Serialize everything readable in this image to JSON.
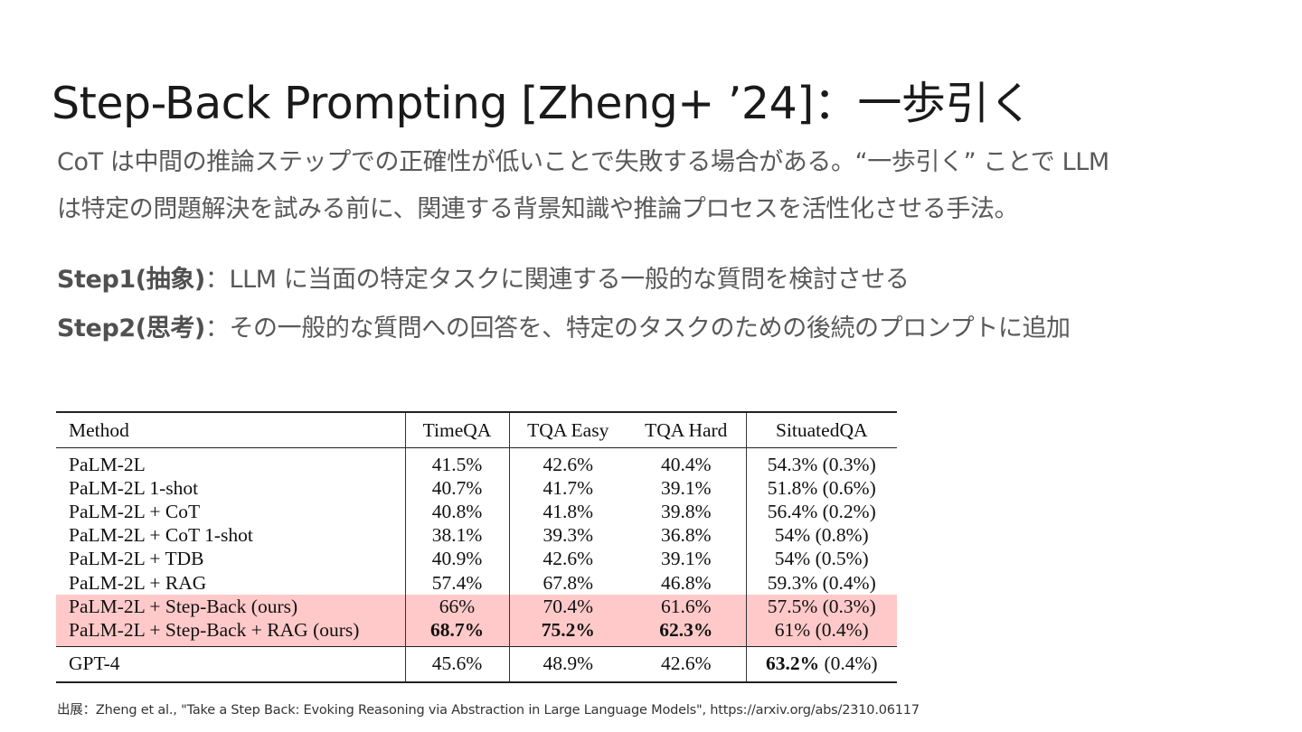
{
  "title": "Step-Back Prompting [Zheng+ ’24]：一歩引く",
  "intro": {
    "line1": "CoT は中間の推論ステップでの正確性が低いことで失敗する場合がある。“一歩引く” ことで LLM",
    "line2": "は特定の問題解決を試みる前に、関連する背景知識や推論プロセスを活性化させる手法。"
  },
  "steps": [
    {
      "label": "Step1(抽象)",
      "text": "：LLM に当面の特定タスクに関連する一般的な質問を検討させる"
    },
    {
      "label": "Step2(思考)",
      "text": "：その一般的な質問への回答を、特定のタスクのための後続のプロンプトに追加"
    }
  ],
  "table": {
    "headers": [
      "Method",
      "TimeQA",
      "TQA Easy",
      "TQA Hard",
      "SituatedQA"
    ],
    "rows": [
      {
        "method": "PaLM-2L",
        "timeqa": "41.5%",
        "tqa_easy": "42.6%",
        "tqa_hard": "40.4%",
        "situatedqa": "54.3% (0.3%)"
      },
      {
        "method": "PaLM-2L 1-shot",
        "timeqa": "40.7%",
        "tqa_easy": "41.7%",
        "tqa_hard": "39.1%",
        "situatedqa": "51.8% (0.6%)"
      },
      {
        "method": "PaLM-2L + CoT",
        "timeqa": "40.8%",
        "tqa_easy": "41.8%",
        "tqa_hard": "39.8%",
        "situatedqa": "56.4% (0.2%)"
      },
      {
        "method": "PaLM-2L + CoT 1-shot",
        "timeqa": "38.1%",
        "tqa_easy": "39.3%",
        "tqa_hard": "36.8%",
        "situatedqa": "54% (0.8%)"
      },
      {
        "method": "PaLM-2L + TDB",
        "timeqa": "40.9%",
        "tqa_easy": "42.6%",
        "tqa_hard": "39.1%",
        "situatedqa": "54% (0.5%)"
      },
      {
        "method": "PaLM-2L + RAG",
        "timeqa": "57.4%",
        "tqa_easy": "67.8%",
        "tqa_hard": "46.8%",
        "situatedqa": "59.3% (0.4%)"
      },
      {
        "method": "PaLM-2L + Step-Back (ours)",
        "timeqa": "66%",
        "tqa_easy": "70.4%",
        "tqa_hard": "61.6%",
        "situatedqa": "57.5% (0.3%)"
      },
      {
        "method": "PaLM-2L + Step-Back + RAG (ours)",
        "timeqa": "68.7%",
        "tqa_easy": "75.2%",
        "tqa_hard": "62.3%",
        "situatedqa": "61% (0.4%)"
      }
    ],
    "gpt4": {
      "method": "GPT-4",
      "timeqa": "45.6%",
      "tqa_easy": "48.9%",
      "tqa_hard": "42.6%",
      "situatedqa_best": "63.2%",
      "situatedqa_rest": "(0.4%)"
    },
    "highlight_color": "#ffc9c9"
  },
  "source": "出展：Zheng et al., \"Take a Step Back: Evoking Reasoning via Abstraction in Large Language Models\", https://arxiv.org/abs/2310.06117"
}
